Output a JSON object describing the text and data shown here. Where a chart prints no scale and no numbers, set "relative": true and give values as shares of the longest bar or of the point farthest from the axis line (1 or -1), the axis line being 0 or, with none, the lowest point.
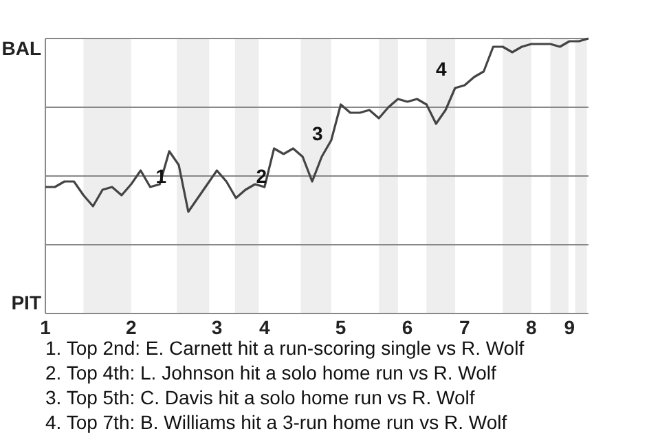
{
  "chart_data": {
    "type": "line",
    "categories": [
      "1",
      null,
      null,
      null,
      null,
      null,
      null,
      null,
      null,
      "2",
      null,
      null,
      null,
      null,
      null,
      null,
      null,
      null,
      "3",
      null,
      null,
      null,
      null,
      "4",
      null,
      null,
      null,
      null,
      null,
      null,
      null,
      "5",
      null,
      null,
      null,
      null,
      null,
      null,
      "6",
      null,
      null,
      null,
      null,
      null,
      "7",
      null,
      null,
      null,
      null,
      null,
      null,
      "8",
      null,
      null,
      null,
      "9",
      null,
      null
    ],
    "series": [
      {
        "color": "#444444",
        "values": [
          0.46,
          0.46,
          0.48,
          0.48,
          0.43,
          0.39,
          0.45,
          0.46,
          0.43,
          0.47,
          0.52,
          0.46,
          0.47,
          0.59,
          0.54,
          0.37,
          0.42,
          0.47,
          0.52,
          0.48,
          0.42,
          0.45,
          0.47,
          0.46,
          0.6,
          0.58,
          0.6,
          0.57,
          0.48,
          0.57,
          0.63,
          0.76,
          0.73,
          0.73,
          0.74,
          0.71,
          0.75,
          0.78,
          0.77,
          0.78,
          0.76,
          0.69,
          0.74,
          0.82,
          0.83,
          0.86,
          0.88,
          0.97,
          0.97,
          0.95,
          0.97,
          0.98,
          0.98,
          0.98,
          0.97,
          0.99,
          0.99,
          1.0
        ]
      }
    ],
    "relative": true,
    "grid": "y",
    "marker": "none",
    "annotations": [
      "BAL",
      "PIT",
      "1",
      "2",
      "3",
      "4",
      "1. Top 2nd: E. Carnett hit a run-scoring single vs R. Wolf",
      "2. Top 4th: L. Johnson hit a solo home run vs R. Wolf",
      "3. Top 5th: C. Davis hit a solo home run vs R. Wolf",
      "4. Top 7th: B. Williams hit a 3-run home run vs R. Wolf"
    ]
  }
}
